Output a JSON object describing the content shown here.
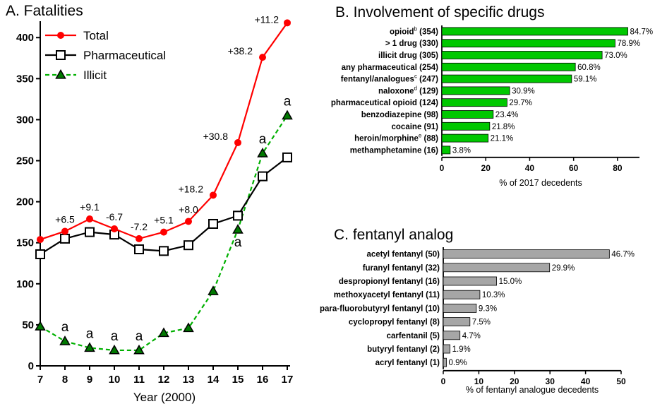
{
  "chart_data": [
    {
      "type": "line",
      "title": "A. Fatalities",
      "xlabel": "Year (2000)",
      "ylabel": "",
      "x": [
        7,
        8,
        9,
        10,
        11,
        12,
        13,
        14,
        15,
        16,
        17
      ],
      "xlim": [
        7,
        17
      ],
      "ylim": [
        0,
        420
      ],
      "yticks": [
        0,
        50,
        100,
        150,
        200,
        250,
        300,
        350,
        400
      ],
      "legend": "top-left",
      "series": [
        {
          "name": "Total",
          "color": "#ff0000",
          "marker": "circle",
          "dash": "solid",
          "values": [
            154,
            164,
            179,
            167,
            155,
            163,
            176,
            208,
            272,
            376,
            418
          ]
        },
        {
          "name": "Pharmaceutical",
          "color": "#000000",
          "marker": "square",
          "dash": "solid",
          "values": [
            136,
            155,
            163,
            160,
            142,
            140,
            147,
            173,
            183,
            231,
            254
          ]
        },
        {
          "name": "Illicit",
          "color": "#00b000",
          "marker": "triangle",
          "dash": "dashed",
          "values": [
            48,
            30,
            22,
            19,
            19,
            40,
            46,
            91,
            166,
            259,
            305
          ]
        }
      ],
      "annotations": {
        "total_change": [
          "",
          "+6.5",
          "+9.1",
          "-6.7",
          "-7.2",
          "+5.1",
          "+8.0",
          "+18.2",
          "+30.8",
          "+38.2",
          "+11.2"
        ],
        "illicit_marks": [
          "",
          "a",
          "a",
          "a",
          "a",
          "",
          "",
          "",
          "a",
          "a",
          "a"
        ]
      }
    },
    {
      "type": "bar",
      "orientation": "horizontal",
      "title": "B. Involvement of specific drugs",
      "xlabel": "% of 2017 decedents",
      "xlim": [
        0,
        90
      ],
      "xticks": [
        0,
        20,
        40,
        60,
        80
      ],
      "color": "#00c800",
      "categories": [
        {
          "label": "opioid",
          "sup": "b",
          "count": "(354)"
        },
        {
          "label": "> 1 drug",
          "sup": "",
          "count": "(330)"
        },
        {
          "label": "illicit drug",
          "sup": "",
          "count": "(305)"
        },
        {
          "label": "any pharmaceutical",
          "sup": "",
          "count": "(254)"
        },
        {
          "label": "fentanyl/analogues",
          "sup": "c",
          "count": "(247)"
        },
        {
          "label": "naloxone",
          "sup": "d",
          "count": "(129)"
        },
        {
          "label": "pharmaceutical opioid",
          "sup": "",
          "count": "(124)"
        },
        {
          "label": "benzodiazepine",
          "sup": "",
          "count": "(98)"
        },
        {
          "label": "cocaine",
          "sup": "",
          "count": "(91)"
        },
        {
          "label": "heroin/morphine",
          "sup": "e",
          "count": "(88)"
        },
        {
          "label": "methamphetamine",
          "sup": "",
          "count": "(16)"
        }
      ],
      "values": [
        84.7,
        78.9,
        73.0,
        60.8,
        59.1,
        30.9,
        29.7,
        23.4,
        21.8,
        21.1,
        3.8
      ],
      "value_labels": [
        "84.7%",
        "78.9%",
        "73.0%",
        "60.8%",
        "59.1%",
        "30.9%",
        "29.7%",
        "23.4%",
        "21.8%",
        "21.1%",
        "3.8%"
      ]
    },
    {
      "type": "bar",
      "orientation": "horizontal",
      "title": "C. fentanyl analog",
      "xlabel": "% of fentanyl analogue decedents",
      "xlim": [
        0,
        50
      ],
      "xticks": [
        0,
        10,
        20,
        30,
        40,
        50
      ],
      "color": "#a6a6a6",
      "categories": [
        {
          "label": "acetyl fentanyl",
          "sup": "",
          "count": "(50)"
        },
        {
          "label": "furanyl fentanyl",
          "sup": "",
          "count": "(32)"
        },
        {
          "label": "despropionyl fentanyl",
          "sup": "",
          "count": "(16)"
        },
        {
          "label": "methoxyacetyl fentanyl",
          "sup": "",
          "count": "(11)"
        },
        {
          "label": "para-fluorobutyryl fentanyl",
          "sup": "",
          "count": "(10)"
        },
        {
          "label": "cyclopropyl fentanyl",
          "sup": "",
          "count": "(8)"
        },
        {
          "label": "carfentanil",
          "sup": "",
          "count": "(5)"
        },
        {
          "label": "butyryl fentanyl",
          "sup": "",
          "count": "(2)"
        },
        {
          "label": "acryl fentanyl",
          "sup": "",
          "count": "(1)"
        }
      ],
      "values": [
        46.7,
        29.9,
        15.0,
        10.3,
        9.3,
        7.5,
        4.7,
        1.9,
        0.9
      ],
      "value_labels": [
        "46.7%",
        "29.9%",
        "15.0%",
        "10.3%",
        "9.3%",
        "7.5%",
        "4.7%",
        "1.9%",
        "0.9%"
      ]
    }
  ]
}
